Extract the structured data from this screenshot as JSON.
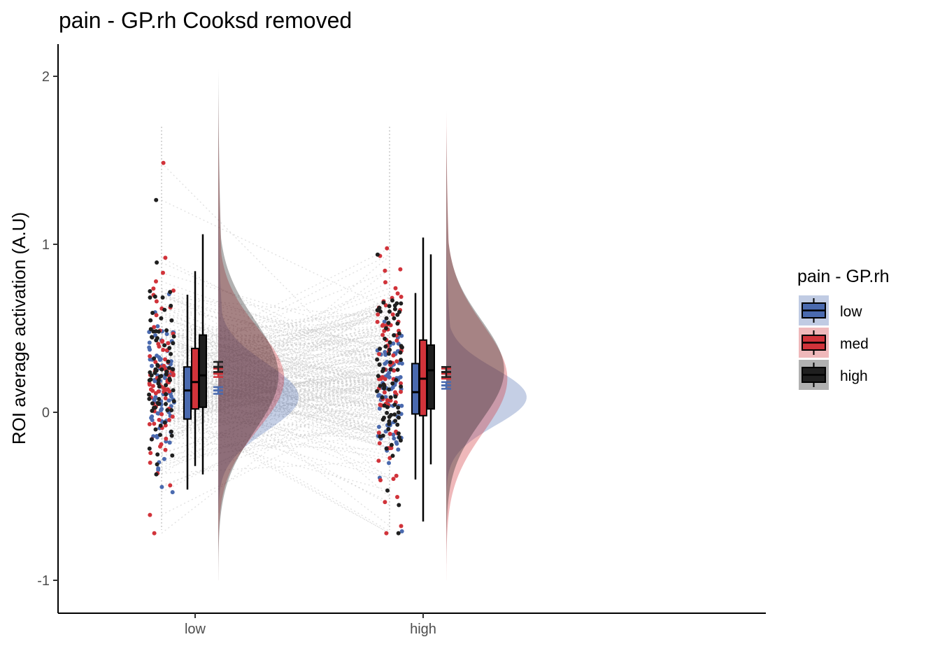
{
  "chart_data": {
    "type": "raincloud",
    "title": "pain  -  GP.rh Cooksd removed",
    "ylabel": "ROI average activation (A.U)",
    "xlabel": "",
    "categories": [
      "low",
      "high"
    ],
    "ylim": [
      -1.17,
      2.2
    ],
    "yticks": [
      "2",
      "1",
      "0",
      "-1"
    ],
    "ytick_values": [
      2,
      1,
      0,
      -1
    ],
    "grid": false,
    "legend": {
      "title": "pain  -  GP.rh",
      "position": "right",
      "entries": [
        "low",
        "med",
        "high"
      ]
    },
    "series": [
      {
        "name": "low",
        "color": "#4A6AAF",
        "boxes": [
          {
            "category": "low",
            "min": -0.46,
            "q1": -0.04,
            "median": 0.13,
            "q3": 0.27,
            "max": 0.7
          },
          {
            "category": "high",
            "min": -0.4,
            "q1": -0.01,
            "median": 0.12,
            "q3": 0.29,
            "max": 0.71
          }
        ],
        "mean_se": [
          {
            "category": "low",
            "mean": 0.13,
            "lo": 0.11,
            "hi": 0.15
          },
          {
            "category": "high",
            "mean": 0.16,
            "lo": 0.14,
            "hi": 0.18
          }
        ],
        "density": [
          {
            "category": "low",
            "mode": 0.09,
            "peak_width": 1.0,
            "sd": 0.2,
            "min": -0.6,
            "max": 1.3
          },
          {
            "category": "high",
            "mode": 0.09,
            "peak_width": 1.0,
            "sd": 0.17,
            "min": -0.55,
            "max": 1.1
          }
        ]
      },
      {
        "name": "med",
        "color": "#D1333A",
        "boxes": [
          {
            "category": "low",
            "min": -0.32,
            "q1": 0.02,
            "median": 0.18,
            "q3": 0.38,
            "max": 0.84
          },
          {
            "category": "high",
            "min": -0.65,
            "q1": -0.02,
            "median": 0.2,
            "q3": 0.43,
            "max": 1.04
          }
        ],
        "mean_se": [
          {
            "category": "low",
            "mean": 0.23,
            "lo": 0.21,
            "hi": 0.26
          },
          {
            "category": "high",
            "mean": 0.23,
            "lo": 0.2,
            "hi": 0.26
          }
        ],
        "density": [
          {
            "category": "low",
            "mode": 0.2,
            "peak_width": 0.82,
            "sd": 0.3,
            "min": -1.0,
            "max": 1.9
          },
          {
            "category": "high",
            "mode": 0.2,
            "peak_width": 0.76,
            "sd": 0.32,
            "min": -1.0,
            "max": 1.8
          }
        ]
      },
      {
        "name": "high",
        "color": "#1F1F1F",
        "boxes": [
          {
            "category": "low",
            "min": -0.37,
            "q1": 0.03,
            "median": 0.22,
            "q3": 0.46,
            "max": 1.06
          },
          {
            "category": "high",
            "min": -0.31,
            "q1": 0.02,
            "median": 0.25,
            "q3": 0.4,
            "max": 0.94
          }
        ],
        "mean_se": [
          {
            "category": "low",
            "mean": 0.27,
            "lo": 0.24,
            "hi": 0.3
          },
          {
            "category": "high",
            "mean": 0.24,
            "lo": 0.21,
            "hi": 0.27
          }
        ],
        "density": [
          {
            "category": "low",
            "mode": 0.22,
            "peak_width": 0.75,
            "sd": 0.33,
            "min": -1.0,
            "max": 2.05
          },
          {
            "category": "high",
            "mode": 0.25,
            "peak_width": 0.72,
            "sd": 0.3,
            "min": -0.9,
            "max": 1.7
          }
        ]
      }
    ]
  }
}
